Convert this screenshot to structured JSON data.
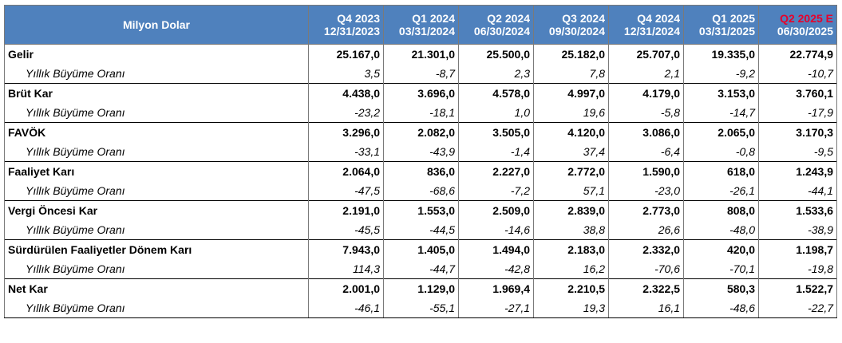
{
  "table": {
    "unit_label": "Milyon Dolar",
    "columns": [
      {
        "quarter": "Q4 2023",
        "date": "12/31/2023",
        "estimate": false
      },
      {
        "quarter": "Q1 2024",
        "date": "03/31/2024",
        "estimate": false
      },
      {
        "quarter": "Q2 2024",
        "date": "06/30/2024",
        "estimate": false
      },
      {
        "quarter": "Q3 2024",
        "date": "09/30/2024",
        "estimate": false
      },
      {
        "quarter": "Q4 2024",
        "date": "12/31/2024",
        "estimate": false
      },
      {
        "quarter": "Q1 2025",
        "date": "03/31/2025",
        "estimate": false
      },
      {
        "quarter": "Q2 2025 E",
        "date": "06/30/2025",
        "estimate": true
      }
    ],
    "colors": {
      "header_bg": "#4f81bd",
      "header_text": "#ffffff",
      "estimate_text": "#e8002a"
    },
    "metrics": [
      {
        "name": "Gelir",
        "values": [
          "25.167,0",
          "21.301,0",
          "25.500,0",
          "25.182,0",
          "25.707,0",
          "19.335,0",
          "22.774,9"
        ],
        "growth_label": "Yıllık Büyüme Oranı",
        "growth": [
          "3,5",
          "-8,7",
          "2,3",
          "7,8",
          "2,1",
          "-9,2",
          "-10,7"
        ]
      },
      {
        "name": "Brüt Kar",
        "values": [
          "4.438,0",
          "3.696,0",
          "4.578,0",
          "4.997,0",
          "4.179,0",
          "3.153,0",
          "3.760,1"
        ],
        "growth_label": "Yıllık Büyüme Oranı",
        "growth": [
          "-23,2",
          "-18,1",
          "1,0",
          "19,6",
          "-5,8",
          "-14,7",
          "-17,9"
        ]
      },
      {
        "name": "FAVÖK",
        "values": [
          "3.296,0",
          "2.082,0",
          "3.505,0",
          "4.120,0",
          "3.086,0",
          "2.065,0",
          "3.170,3"
        ],
        "growth_label": "Yıllık Büyüme Oranı",
        "growth": [
          "-33,1",
          "-43,9",
          "-1,4",
          "37,4",
          "-6,4",
          "-0,8",
          "-9,5"
        ]
      },
      {
        "name": "Faaliyet Karı",
        "values": [
          "2.064,0",
          "836,0",
          "2.227,0",
          "2.772,0",
          "1.590,0",
          "618,0",
          "1.243,9"
        ],
        "growth_label": "Yıllık Büyüme Oranı",
        "growth": [
          "-47,5",
          "-68,6",
          "-7,2",
          "57,1",
          "-23,0",
          "-26,1",
          "-44,1"
        ]
      },
      {
        "name": "Vergi Öncesi Kar",
        "values": [
          "2.191,0",
          "1.553,0",
          "2.509,0",
          "2.839,0",
          "2.773,0",
          "808,0",
          "1.533,6"
        ],
        "growth_label": "Yıllık Büyüme Oranı",
        "growth": [
          "-45,5",
          "-44,5",
          "-14,6",
          "38,8",
          "26,6",
          "-48,0",
          "-38,9"
        ]
      },
      {
        "name": "Sürdürülen Faaliyetler Dönem Karı",
        "values": [
          "7.943,0",
          "1.405,0",
          "1.494,0",
          "2.183,0",
          "2.332,0",
          "420,0",
          "1.198,7"
        ],
        "growth_label": "Yıllık Büyüme Oranı",
        "growth": [
          "114,3",
          "-44,7",
          "-42,8",
          "16,2",
          "-70,6",
          "-70,1",
          "-19,8"
        ]
      },
      {
        "name": "Net Kar",
        "values": [
          "2.001,0",
          "1.129,0",
          "1.969,4",
          "2.210,5",
          "2.322,5",
          "580,3",
          "1.522,7"
        ],
        "growth_label": "Yıllık Büyüme Oranı",
        "growth": [
          "-46,1",
          "-55,1",
          "-27,1",
          "19,3",
          "16,1",
          "-48,6",
          "-22,7"
        ]
      }
    ]
  }
}
